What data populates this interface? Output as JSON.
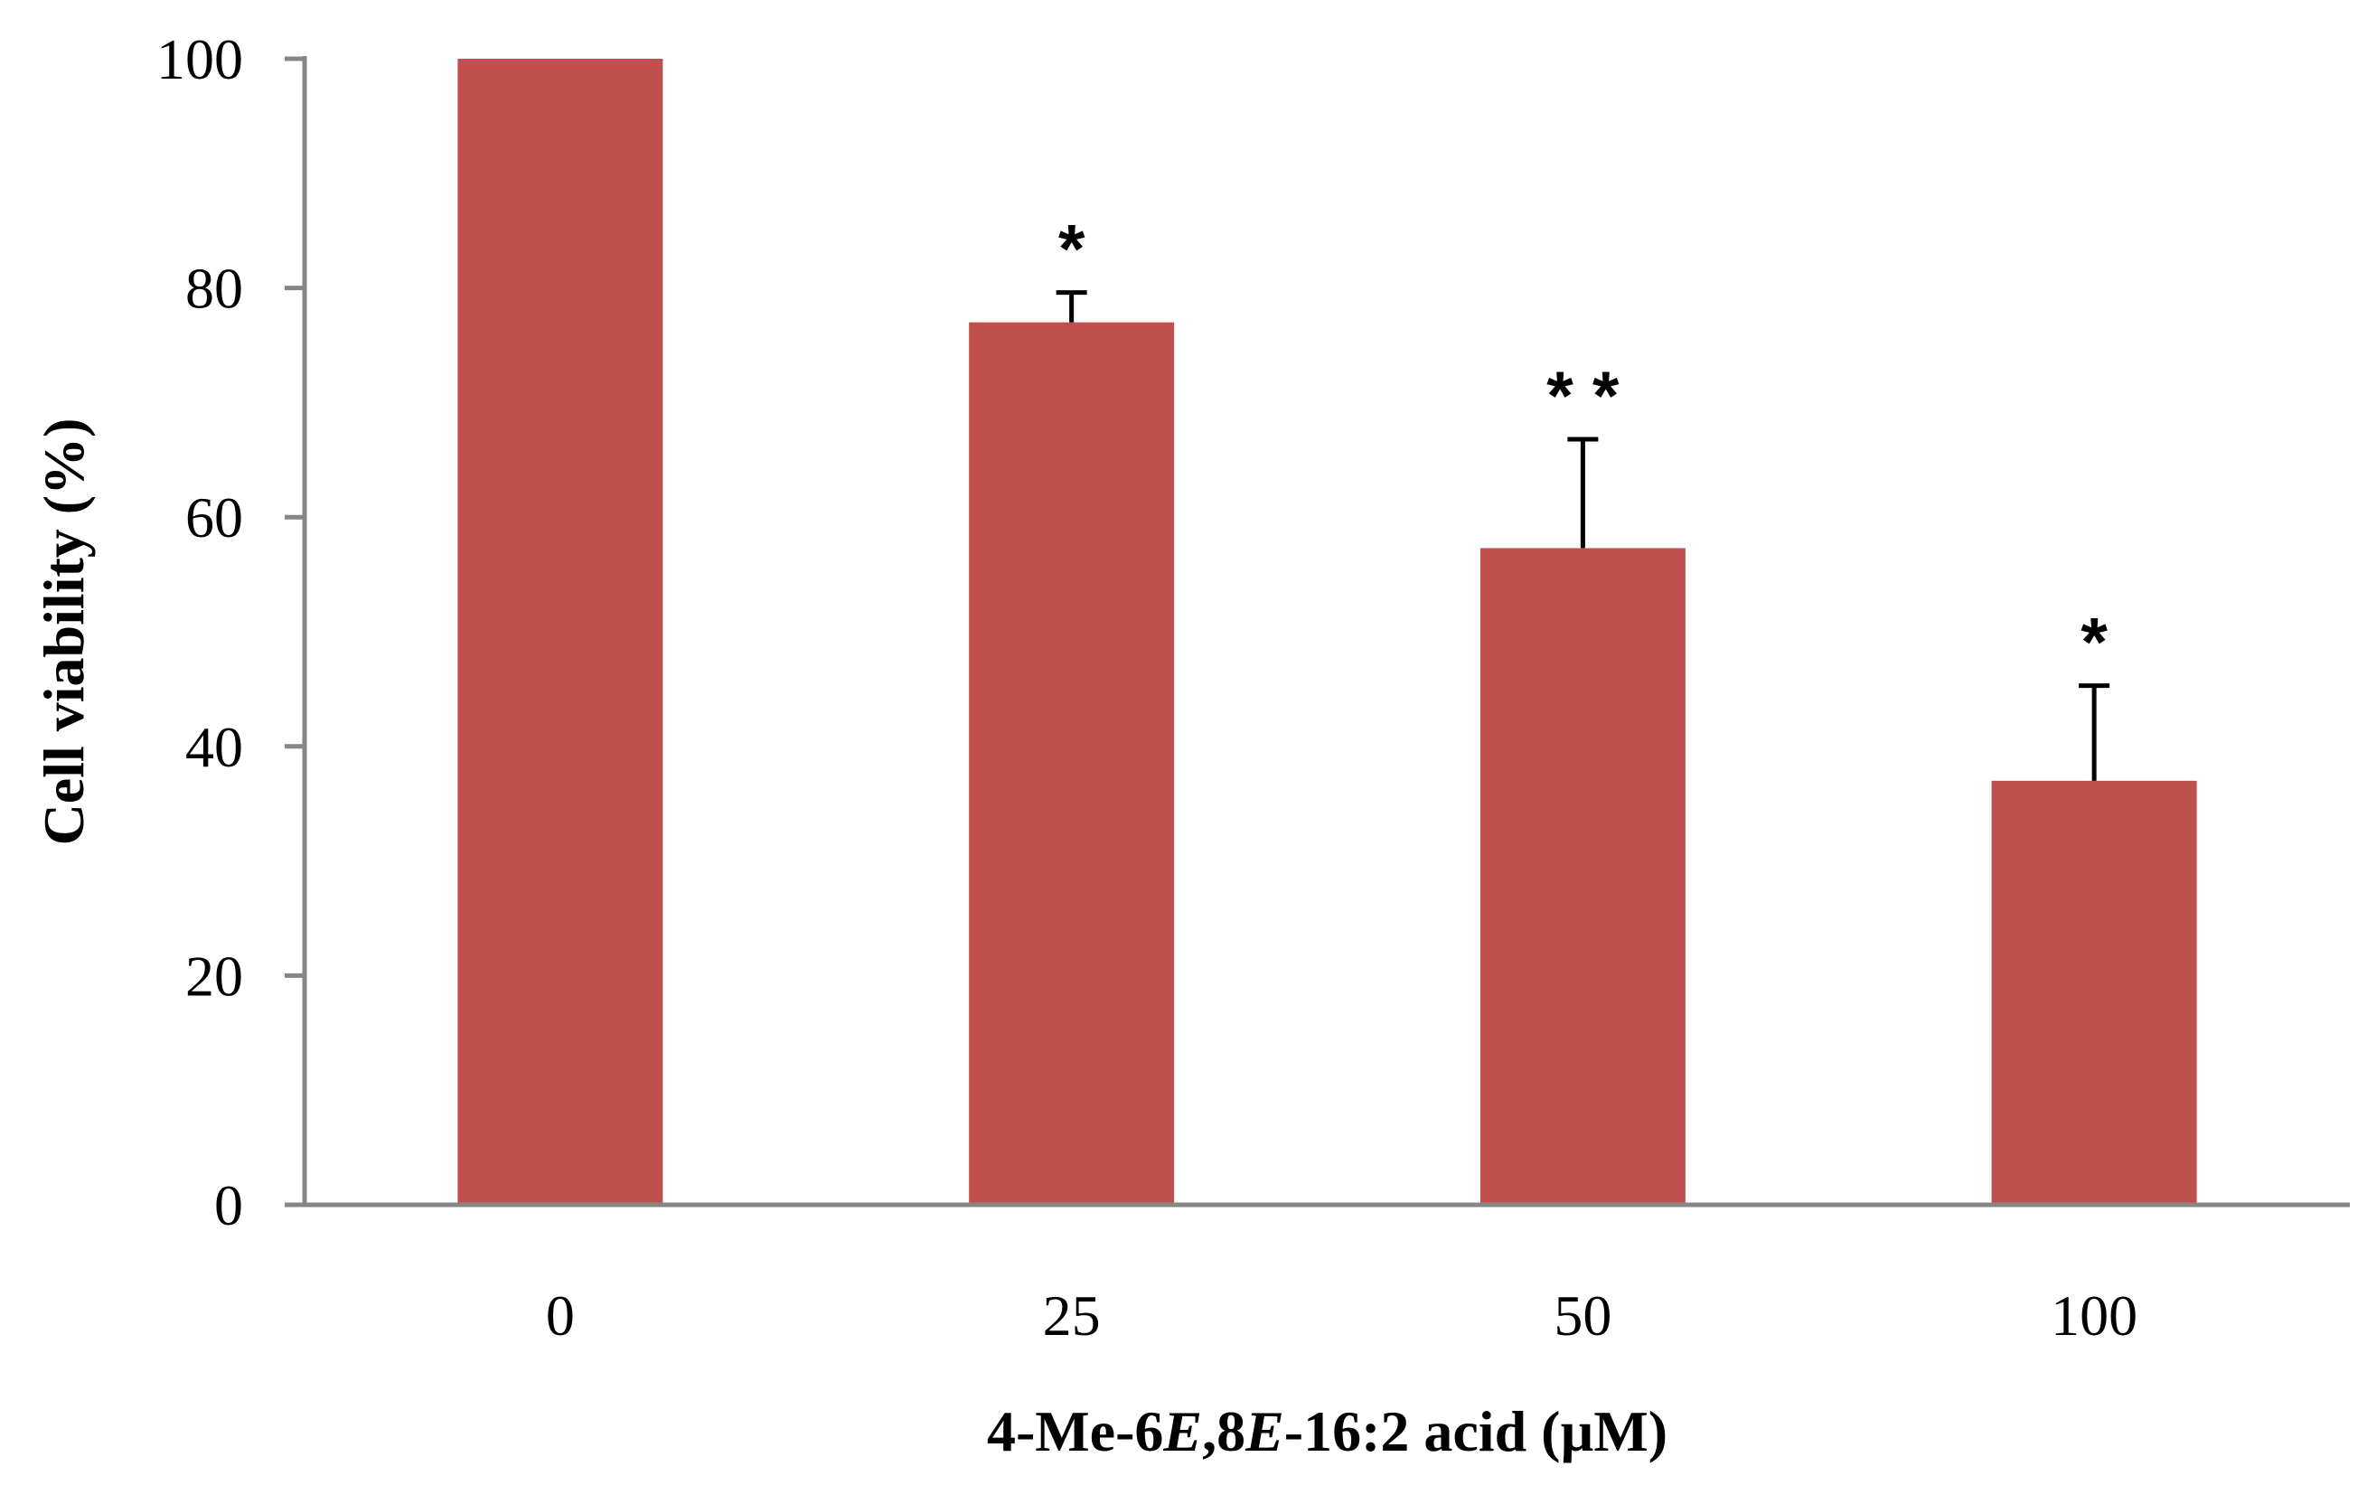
{
  "colors": {
    "bar": "#C0504D",
    "axis": "#868686",
    "error_bar": "#000000",
    "text": "#000000"
  },
  "chart_data": {
    "type": "bar",
    "categories": [
      "0",
      "25",
      "50",
      "100"
    ],
    "series": [
      {
        "values": [
          100,
          77,
          57.3,
          37
        ],
        "error_upper": [
          0,
          2.6,
          9.5,
          8.3
        ],
        "significance": [
          "",
          "*",
          "* *",
          "*"
        ]
      }
    ],
    "xlabel_parts": [
      {
        "text": "4-Me-6",
        "italic": false
      },
      {
        "text": "E",
        "italic": true
      },
      {
        "text": ",8",
        "italic": false
      },
      {
        "text": "E",
        "italic": true
      },
      {
        "text": "-16:2 acid (µM)",
        "italic": false
      }
    ],
    "ylabel": "Cell viability (%)",
    "ylim": [
      0,
      100
    ],
    "yticks": [
      0,
      20,
      40,
      60,
      80,
      100
    ],
    "grid": false,
    "legend": "none"
  }
}
